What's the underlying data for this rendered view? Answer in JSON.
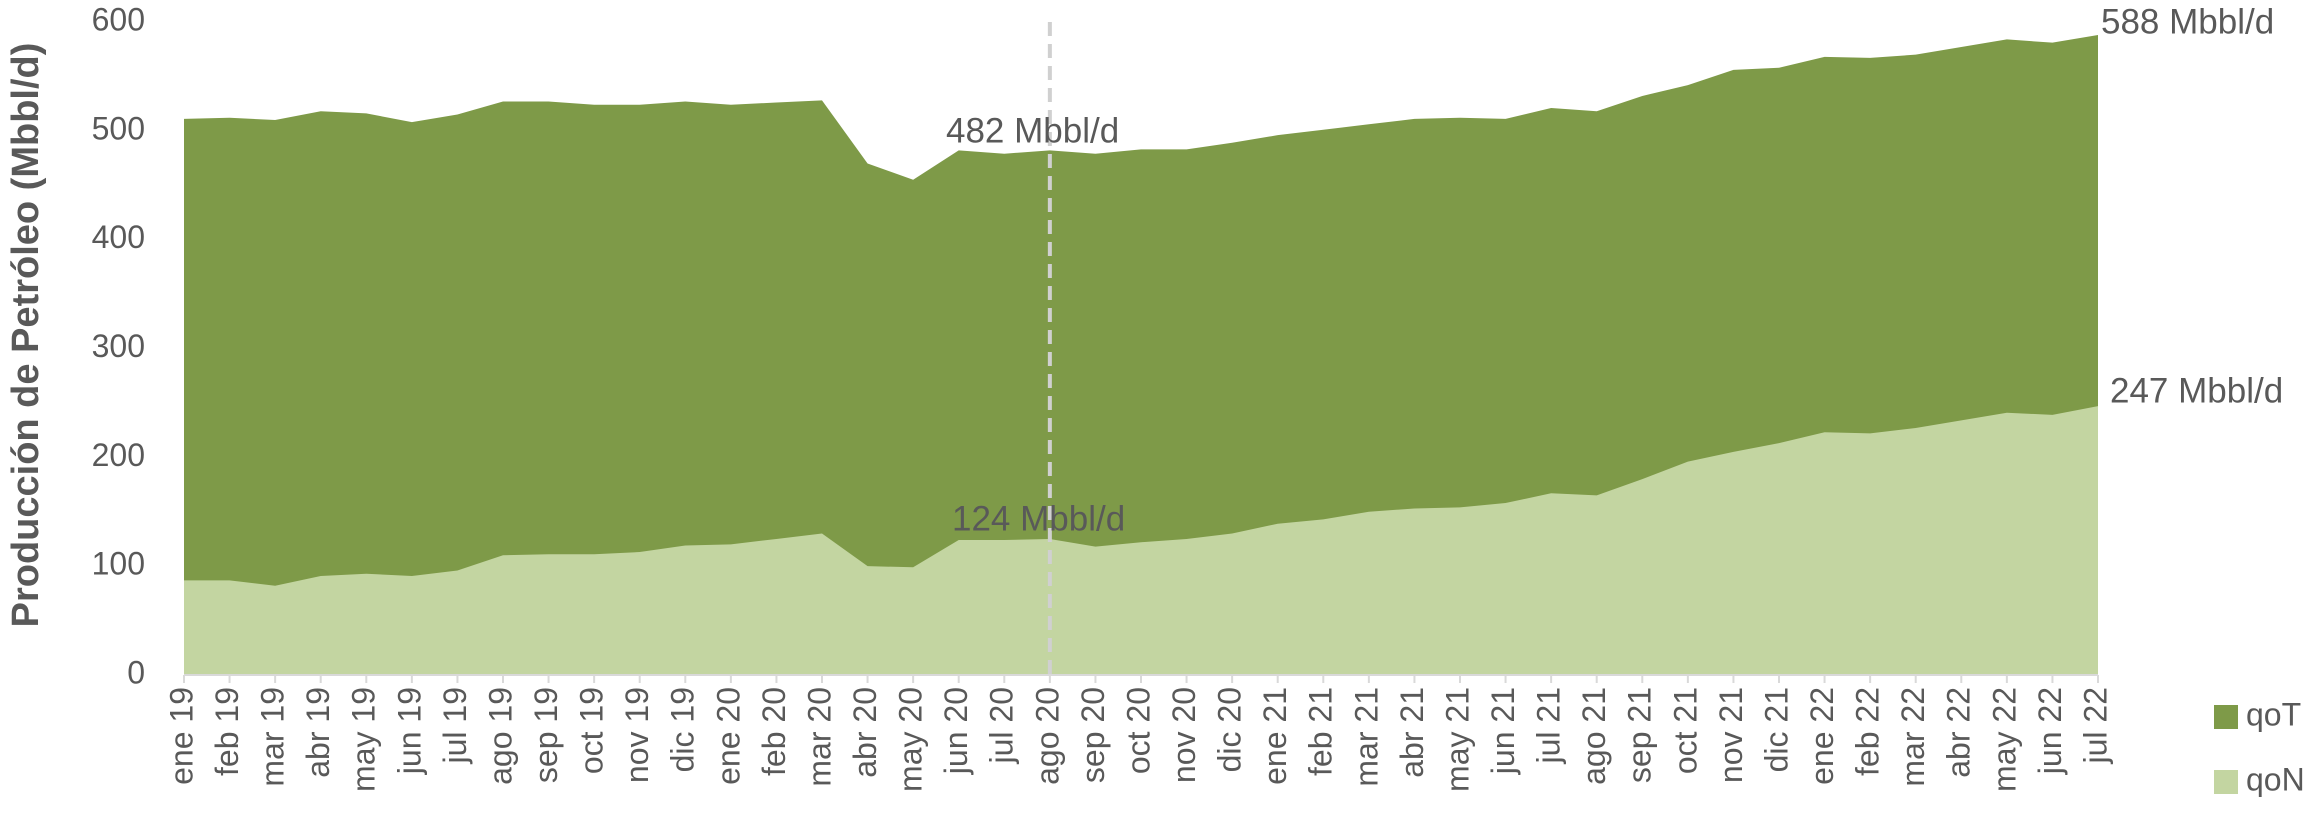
{
  "chart_data": {
    "type": "area",
    "y_label": "Producción de Petróleo (Mbbl/d)",
    "categories": [
      "ene 19",
      "feb 19",
      "mar 19",
      "abr 19",
      "may 19",
      "jun 19",
      "jul 19",
      "ago 19",
      "sep 19",
      "oct 19",
      "nov 19",
      "dic 19",
      "ene 20",
      "feb 20",
      "mar 20",
      "abr 20",
      "may 20",
      "jun 20",
      "jul 20",
      "ago 20",
      "sep 20",
      "oct 20",
      "nov 20",
      "dic 20",
      "ene 21",
      "feb 21",
      "mar 21",
      "abr 21",
      "may 21",
      "jun 21",
      "jul 21",
      "ago 21",
      "sep 21",
      "oct 21",
      "nov 21",
      "dic 21",
      "ene 22",
      "feb 22",
      "mar 22",
      "abr 22",
      "may 22",
      "jun 22",
      "jul 22"
    ],
    "series": [
      {
        "name": "qoT",
        "color": "#7e9a48",
        "values": [
          511,
          512,
          510,
          518,
          516,
          508,
          515,
          527,
          527,
          524,
          524,
          527,
          524,
          526,
          528,
          470,
          455,
          482,
          479,
          482,
          479,
          483,
          483,
          489,
          496,
          501,
          506,
          511,
          512,
          511,
          521,
          518,
          532,
          542,
          556,
          558,
          568,
          567,
          570,
          577,
          584,
          581,
          588
        ]
      },
      {
        "name": "qoN",
        "color": "#c3d5a1",
        "values": [
          87,
          87,
          82,
          91,
          93,
          91,
          96,
          110,
          111,
          111,
          113,
          119,
          120,
          125,
          130,
          100,
          99,
          124,
          124,
          125,
          118,
          122,
          125,
          130,
          139,
          143,
          150,
          153,
          154,
          158,
          167,
          165,
          180,
          196,
          205,
          213,
          223,
          222,
          227,
          234,
          241,
          239,
          247
        ]
      }
    ],
    "annotations": [
      "482 Mbbl/d",
      "124 Mbbl/d",
      "588 Mbbl/d",
      "247 Mbbl/d"
    ],
    "ylim": [
      0,
      600
    ],
    "yticks": [
      0,
      100,
      200,
      300,
      400,
      500,
      600
    ],
    "grid": false
  }
}
